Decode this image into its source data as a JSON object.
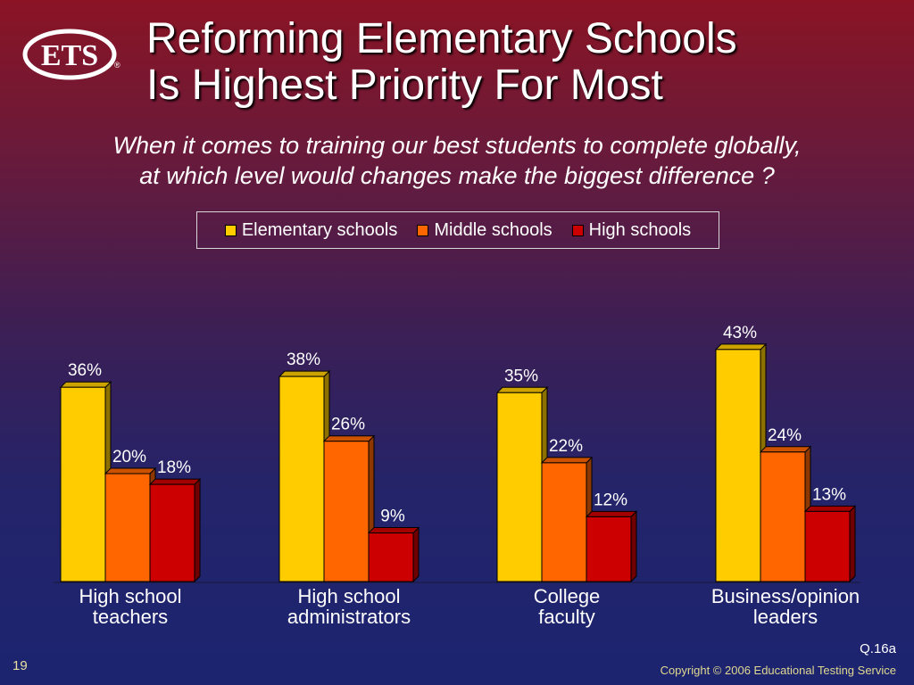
{
  "logo": {
    "text": "ETS"
  },
  "title": {
    "line1": "Reforming Elementary Schools",
    "line2": "Is Highest Priority For Most"
  },
  "subtitle": {
    "line1": "When it comes to training our best students to complete globally,",
    "line2": "at which level would changes make the biggest difference ?"
  },
  "footer": {
    "question": "Q.16a",
    "page": "19",
    "copyright": "Copyright © 2006 Educational Testing Service"
  },
  "colors": {
    "elementary": "#ffcc00",
    "middle": "#ff6600",
    "high": "#cc0000"
  },
  "chart_data": {
    "type": "bar",
    "categories": [
      [
        "High school",
        "teachers"
      ],
      [
        "High school",
        "administrators"
      ],
      [
        "College",
        "faculty"
      ],
      [
        "Business/opinion",
        "leaders"
      ]
    ],
    "series": [
      {
        "name": "Elementary schools",
        "values": [
          36,
          38,
          35,
          43
        ],
        "color": "#ffcc00"
      },
      {
        "name": "Middle schools",
        "values": [
          20,
          26,
          22,
          24
        ],
        "color": "#ff6600"
      },
      {
        "name": "High schools",
        "values": [
          18,
          9,
          12,
          13
        ],
        "color": "#cc0000"
      }
    ],
    "value_suffix": "%",
    "legend_position": "top",
    "grid": false
  }
}
